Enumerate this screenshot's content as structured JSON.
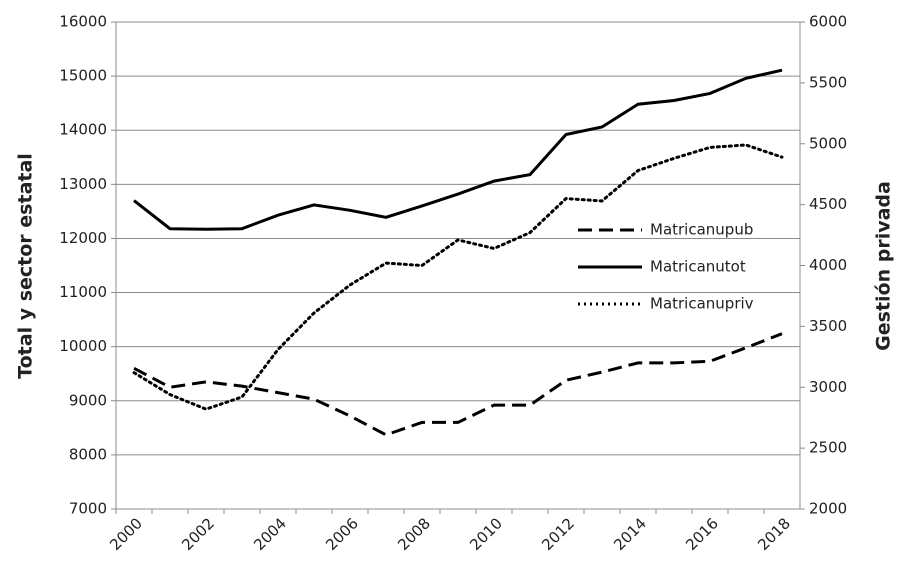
{
  "chart_data": {
    "type": "line",
    "categories": [
      "2000",
      null,
      "2002",
      null,
      "2004",
      null,
      "2006",
      null,
      "2008",
      null,
      "2010",
      null,
      "2012",
      null,
      "2014",
      null,
      "2016",
      null,
      "2018"
    ],
    "series": [
      {
        "name": "Matricanupub",
        "color": "#000000",
        "style": "dashed",
        "axis": "y",
        "values": [
          9600,
          9250,
          9350,
          9270,
          9150,
          9030,
          8720,
          8370,
          8600,
          8600,
          8920,
          8920,
          9380,
          9530,
          9700,
          9700,
          9730,
          9980,
          10240
        ]
      },
      {
        "name": "Matricanutot",
        "color": "#000000",
        "style": "solid",
        "axis": "y",
        "values": [
          12700,
          12180,
          12170,
          12180,
          12430,
          12620,
          12520,
          12390,
          12600,
          12820,
          13060,
          13180,
          13920,
          14060,
          14480,
          14550,
          14680,
          14960,
          15110
        ]
      },
      {
        "name": "Matricanupriv",
        "color": "#000000",
        "style": "dotted",
        "axis": "y2",
        "values": [
          3120,
          2940,
          2820,
          2920,
          3310,
          3610,
          3840,
          4020,
          4000,
          4210,
          4140,
          4270,
          4550,
          4530,
          4780,
          4880,
          4970,
          4990,
          4890
        ]
      }
    ],
    "ylabel": "Total y sector estatal",
    "y2label": "Gestión privada",
    "ylim": [
      7000,
      16000
    ],
    "yticks": [
      7000,
      8000,
      9000,
      10000,
      11000,
      12000,
      13000,
      14000,
      15000,
      16000
    ],
    "y2lim": [
      2000,
      6000
    ],
    "y2ticks": [
      2000,
      2500,
      3000,
      3500,
      4000,
      4500,
      5000,
      5500,
      6000
    ],
    "grid": true,
    "legend": "right"
  }
}
